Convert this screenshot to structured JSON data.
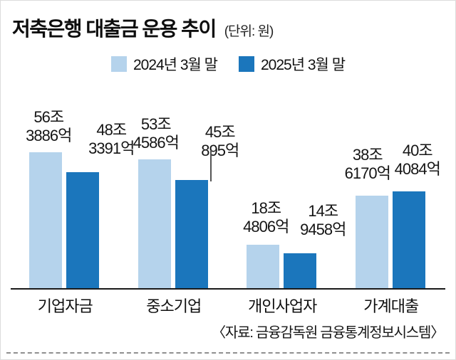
{
  "title": "저축은행 대출금 운용 추이",
  "unit": "(단위: 원)",
  "source": "〈자료: 금융감독원 금융통계정보시스템〉",
  "colors": {
    "series_2024": "#b5d3ec",
    "series_2025": "#1b76bc",
    "axis": "#1a1a1a",
    "text": "#111111"
  },
  "chart_data": {
    "type": "bar",
    "title": "저축은행 대출금 운용 추이",
    "unit_note": "(단위: 원)",
    "categories": [
      "기업자금",
      "중소기업",
      "개인사업자",
      "가계대출"
    ],
    "series": [
      {
        "name": "2024년 3월 말",
        "color": "#b5d3ec",
        "values": [
          56.3886,
          53.4586,
          18.4806,
          38.617
        ],
        "labels": [
          [
            "56조",
            "3886억"
          ],
          [
            "53조",
            "4586억"
          ],
          [
            "18조",
            "4806억"
          ],
          [
            "38조",
            "6170억"
          ]
        ]
      },
      {
        "name": "2025년 3월 말",
        "color": "#1b76bc",
        "values": [
          48.3391,
          45.0895,
          14.9458,
          40.4084
        ],
        "labels": [
          [
            "48조",
            "3391억"
          ],
          [
            "45조",
            "895억"
          ],
          [
            "14조",
            "9458억"
          ],
          [
            "40조",
            "4084억"
          ]
        ]
      }
    ],
    "value_scale": "조 원",
    "ylim": [
      0,
      60
    ],
    "grid": false,
    "legend_position": "top",
    "source": "자료: 금융감독원 금융통계정보시스템"
  }
}
